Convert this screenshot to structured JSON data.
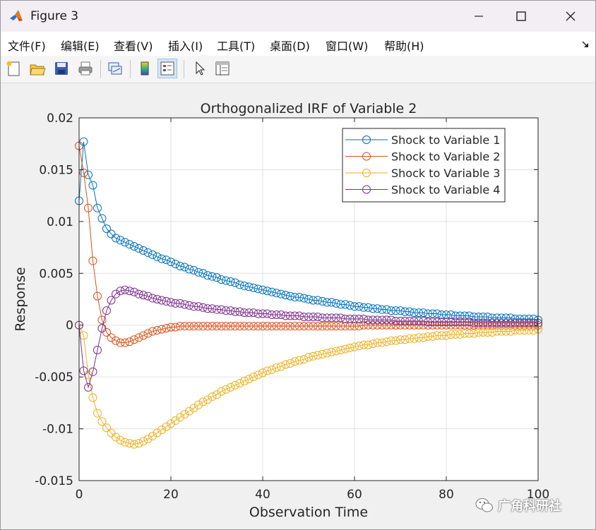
{
  "window": {
    "title": "Figure 3"
  },
  "menu": {
    "items": [
      "文件(F)",
      "编辑(E)",
      "查看(V)",
      "插入(I)",
      "工具(T)",
      "桌面(D)",
      "窗口(W)",
      "帮助(H)"
    ]
  },
  "toolbar": {
    "icons": [
      "new-figure-icon",
      "open-file-icon",
      "save-icon",
      "print-icon",
      "link-plot-icon",
      "colorbar-icon",
      "legend-icon",
      "edit-plot-icon",
      "property-inspector-icon"
    ]
  },
  "watermark": {
    "text": "广角科研社"
  },
  "chart_data": {
    "type": "line",
    "title": "Orthogonalized IRF of Variable 2",
    "xlabel": "Observation Time",
    "ylabel": "Response",
    "xlim": [
      0,
      100
    ],
    "ylim": [
      -0.015,
      0.02
    ],
    "xticks": [
      0,
      20,
      40,
      60,
      80,
      100
    ],
    "yticks": [
      -0.015,
      -0.01,
      -0.005,
      0,
      0.005,
      0.01,
      0.015,
      0.02
    ],
    "xtick_labels": [
      "0",
      "20",
      "40",
      "60",
      "80",
      "100"
    ],
    "ytick_labels": [
      "-0.015",
      "-0.01",
      "-0.005",
      "0",
      "0.005",
      "0.01",
      "0.015",
      "0.02"
    ],
    "grid": true,
    "legend_position": "top-right",
    "marker": "circle",
    "x": [
      0,
      1,
      2,
      3,
      4,
      5,
      6,
      7,
      8,
      9,
      10,
      11,
      12,
      13,
      14,
      15,
      16,
      17,
      18,
      19,
      20,
      21,
      22,
      23,
      24,
      25,
      26,
      27,
      28,
      29,
      30,
      31,
      32,
      33,
      34,
      35,
      36,
      37,
      38,
      39,
      40,
      41,
      42,
      43,
      44,
      45,
      46,
      47,
      48,
      49,
      50,
      51,
      52,
      53,
      54,
      55,
      56,
      57,
      58,
      59,
      60,
      61,
      62,
      63,
      64,
      65,
      66,
      67,
      68,
      69,
      70,
      71,
      72,
      73,
      74,
      75,
      76,
      77,
      78,
      79,
      80,
      81,
      82,
      83,
      84,
      85,
      86,
      87,
      88,
      89,
      90,
      91,
      92,
      93,
      94,
      95,
      96,
      97,
      98,
      99,
      100
    ],
    "series": [
      {
        "name": "Shock to Variable 1",
        "color": "#0072BD",
        "values": [
          0.012,
          0.0177,
          0.0145,
          0.0135,
          0.0113,
          0.0103,
          0.0093,
          0.0088,
          0.0084,
          0.0082,
          0.008,
          0.0078,
          0.0076,
          0.0074,
          0.0072,
          0.007,
          0.0068,
          0.0066,
          0.0064,
          0.0063,
          0.0061,
          0.0059,
          0.0057,
          0.0056,
          0.0054,
          0.0053,
          0.0051,
          0.005,
          0.0048,
          0.0047,
          0.0046,
          0.0044,
          0.0043,
          0.0042,
          0.0041,
          0.0039,
          0.0038,
          0.0037,
          0.0036,
          0.0035,
          0.0034,
          0.0033,
          0.0032,
          0.0031,
          0.003,
          0.0029,
          0.0028,
          0.0027,
          0.0027,
          0.0026,
          0.0025,
          0.0024,
          0.0024,
          0.0023,
          0.0022,
          0.0022,
          0.0021,
          0.002,
          0.002,
          0.0019,
          0.0018,
          0.0018,
          0.0017,
          0.0017,
          0.0016,
          0.0016,
          0.0015,
          0.0015,
          0.0014,
          0.0014,
          0.0014,
          0.0013,
          0.0013,
          0.0012,
          0.0012,
          0.0012,
          0.0011,
          0.0011,
          0.0011,
          0.001,
          0.001,
          0.001,
          0.0009,
          0.0009,
          0.0009,
          0.0009,
          0.0008,
          0.0008,
          0.0008,
          0.0008,
          0.0007,
          0.0007,
          0.0007,
          0.0007,
          0.0007,
          0.0006,
          0.0006,
          0.0006,
          0.0006,
          0.0006,
          0.0005
        ]
      },
      {
        "name": "Shock to Variable 2",
        "color": "#D95319",
        "values": [
          0.0173,
          0.0147,
          0.0113,
          0.0062,
          0.0028,
          0.0005,
          -0.0007,
          -0.0012,
          -0.0015,
          -0.0017,
          -0.0017,
          -0.0016,
          -0.0014,
          -0.0012,
          -0.001,
          -0.0008,
          -0.0006,
          -0.0005,
          -0.0004,
          -0.0003,
          -0.0002,
          -0.0002,
          -0.0001,
          -0.0001,
          -0.0001,
          -0.0001,
          -0.0001,
          -0.0001,
          -0.0001,
          -0.0001,
          -0.0001,
          -0.0001,
          -0.0001,
          -0.0001,
          -0.0001,
          -0.0001,
          -0.0001,
          -0.0001,
          -0.0001,
          -0.0001,
          -0.0001,
          -0.0001,
          -0.0001,
          -0.0001,
          -0.0001,
          -0.0001,
          -0.0001,
          -0.0001,
          -0.0001,
          -0.0001,
          -0.0001,
          -0.0001,
          -0.0001,
          -0.0001,
          -0.0001,
          -0.0001,
          -0.0001,
          -0.0001,
          -0.0001,
          -0.0001,
          -0.0001,
          -0.0001,
          0,
          0,
          0,
          0,
          0,
          0,
          0,
          0,
          0,
          0,
          0,
          0,
          0,
          0,
          0,
          0,
          0,
          0,
          0,
          0,
          0,
          0,
          0,
          0,
          0,
          0,
          0,
          0,
          0,
          0,
          0,
          0,
          0,
          0,
          0,
          0,
          0,
          0,
          0
        ]
      },
      {
        "name": "Shock to Variable 3",
        "color": "#EDB120",
        "values": [
          0,
          -0.001,
          -0.0048,
          -0.007,
          -0.0085,
          -0.0093,
          -0.0099,
          -0.0104,
          -0.0108,
          -0.0111,
          -0.0113,
          -0.0114,
          -0.0115,
          -0.0114,
          -0.0112,
          -0.011,
          -0.0107,
          -0.0104,
          -0.0101,
          -0.0098,
          -0.0095,
          -0.0092,
          -0.0089,
          -0.0086,
          -0.0083,
          -0.008,
          -0.0077,
          -0.0074,
          -0.0072,
          -0.0069,
          -0.0067,
          -0.0064,
          -0.0062,
          -0.006,
          -0.0058,
          -0.0056,
          -0.0054,
          -0.0052,
          -0.005,
          -0.0048,
          -0.0046,
          -0.0044,
          -0.0043,
          -0.0041,
          -0.004,
          -0.0038,
          -0.0037,
          -0.0035,
          -0.0034,
          -0.0033,
          -0.0031,
          -0.003,
          -0.0029,
          -0.0028,
          -0.0027,
          -0.0026,
          -0.0025,
          -0.0024,
          -0.0023,
          -0.0022,
          -0.0021,
          -0.002,
          -0.0019,
          -0.0019,
          -0.0018,
          -0.0017,
          -0.0017,
          -0.0016,
          -0.0015,
          -0.0015,
          -0.0014,
          -0.0014,
          -0.0013,
          -0.0013,
          -0.0012,
          -0.0012,
          -0.0011,
          -0.0011,
          -0.001,
          -0.001,
          -0.001,
          -0.0009,
          -0.0009,
          -0.0009,
          -0.0008,
          -0.0008,
          -0.0008,
          -0.0007,
          -0.0007,
          -0.0007,
          -0.0007,
          -0.0006,
          -0.0006,
          -0.0006,
          -0.0006,
          -0.0005,
          -0.0005,
          -0.0005,
          -0.0005,
          -0.0005,
          -0.0004
        ]
      },
      {
        "name": "Shock to Variable 4",
        "color": "#7E2F8E",
        "values": [
          0,
          -0.0044,
          -0.006,
          -0.0045,
          -0.0024,
          -0.0003,
          0.0014,
          0.0024,
          0.003,
          0.0033,
          0.0034,
          0.0033,
          0.0032,
          0.003,
          0.0029,
          0.0028,
          0.0026,
          0.0025,
          0.0024,
          0.0023,
          0.0022,
          0.0021,
          0.0021,
          0.002,
          0.0019,
          0.0018,
          0.0018,
          0.0017,
          0.0016,
          0.0016,
          0.0015,
          0.0015,
          0.0014,
          0.0014,
          0.0013,
          0.0013,
          0.0012,
          0.0012,
          0.0012,
          0.0011,
          0.0011,
          0.0011,
          0.001,
          0.001,
          0.001,
          0.0009,
          0.0009,
          0.0009,
          0.0009,
          0.0008,
          0.0008,
          0.0008,
          0.0008,
          0.0007,
          0.0007,
          0.0007,
          0.0007,
          0.0007,
          0.0006,
          0.0006,
          0.0006,
          0.0006,
          0.0006,
          0.0005,
          0.0005,
          0.0005,
          0.0005,
          0.0005,
          0.0005,
          0.0004,
          0.0004,
          0.0004,
          0.0004,
          0.0004,
          0.0004,
          0.0004,
          0.0003,
          0.0003,
          0.0003,
          0.0003,
          0.0003,
          0.0003,
          0.0003,
          0.0003,
          0.0003,
          0.0003,
          0.0002,
          0.0002,
          0.0002,
          0.0002,
          0.0002,
          0.0002,
          0.0002,
          0.0002,
          0.0002,
          0.0002,
          0.0002,
          0.0002,
          0.0002,
          0.0002,
          0.0002
        ]
      }
    ]
  }
}
